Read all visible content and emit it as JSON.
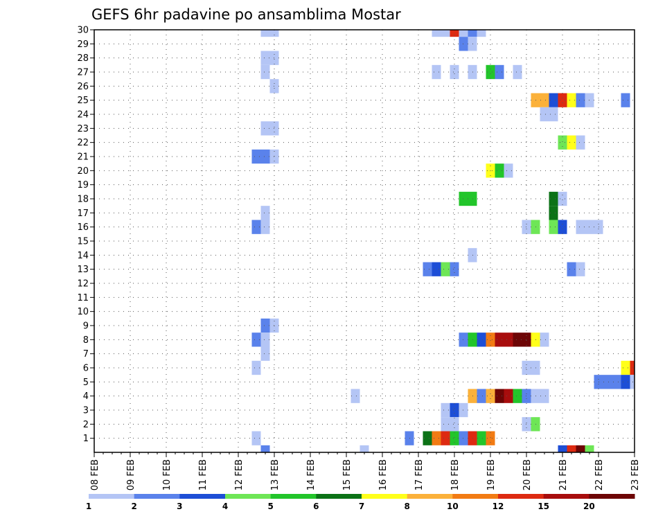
{
  "chart_data": {
    "type": "heatmap",
    "title": "GEFS 6hr padavine po ansamblima Mostar",
    "x_tick_labels": [
      "08 FEB",
      "09 FEB",
      "10 FEB",
      "11 FEB",
      "12 FEB",
      "13 FEB",
      "14 FEB",
      "15 FEB",
      "16 FEB",
      "17 FEB",
      "18 FEB",
      "19 FEB",
      "20 FEB",
      "21 FEB",
      "22 FEB",
      "23 FEB"
    ],
    "y_tick_labels": [
      "1",
      "2",
      "3",
      "4",
      "5",
      "6",
      "7",
      "8",
      "9",
      "10",
      "11",
      "12",
      "13",
      "14",
      "15",
      "16",
      "17",
      "18",
      "19",
      "20",
      "21",
      "22",
      "23",
      "24",
      "25",
      "26",
      "27",
      "28",
      "29",
      "30"
    ],
    "x_range_days": [
      8,
      23
    ],
    "y_range": [
      0,
      30
    ],
    "grid": true,
    "colorbar": {
      "placement": "bottom",
      "labels": [
        "1",
        "2",
        "3",
        "4",
        "5",
        "6",
        "7",
        "8",
        "10",
        "12",
        "15",
        "20"
      ],
      "colors": [
        "#b4c5f5",
        "#5a82eb",
        "#1d4ed6",
        "#6ee656",
        "#22c52a",
        "#0b7216",
        "#ffff1a",
        "#fbb13a",
        "#f27b13",
        "#dd2a11",
        "#a80d0d",
        "#6d0505"
      ]
    },
    "cells": [
      {
        "m": 30,
        "d": 12.75,
        "c": 1
      },
      {
        "m": 30,
        "d": 13.0,
        "c": 1
      },
      {
        "m": 30,
        "d": 17.5,
        "c": 1
      },
      {
        "m": 30,
        "d": 17.75,
        "c": 1
      },
      {
        "m": 30,
        "d": 18.0,
        "c": 10
      },
      {
        "m": 30,
        "d": 18.25,
        "c": 1
      },
      {
        "m": 30,
        "d": 18.5,
        "c": 2
      },
      {
        "m": 30,
        "d": 18.75,
        "c": 1
      },
      {
        "m": 29,
        "d": 18.25,
        "c": 2
      },
      {
        "m": 29,
        "d": 18.5,
        "c": 1
      },
      {
        "m": 28,
        "d": 12.75,
        "c": 1
      },
      {
        "m": 28,
        "d": 13.0,
        "c": 1
      },
      {
        "m": 27,
        "d": 12.75,
        "c": 1
      },
      {
        "m": 27,
        "d": 17.5,
        "c": 1
      },
      {
        "m": 27,
        "d": 18.0,
        "c": 1
      },
      {
        "m": 27,
        "d": 18.5,
        "c": 1
      },
      {
        "m": 27,
        "d": 19.0,
        "c": 5
      },
      {
        "m": 27,
        "d": 19.25,
        "c": 2
      },
      {
        "m": 27,
        "d": 19.75,
        "c": 1
      },
      {
        "m": 26,
        "d": 13.0,
        "c": 1
      },
      {
        "m": 25,
        "d": 20.25,
        "c": 8
      },
      {
        "m": 25,
        "d": 20.5,
        "c": 8
      },
      {
        "m": 25,
        "d": 20.75,
        "c": 3
      },
      {
        "m": 25,
        "d": 21.0,
        "c": 10
      },
      {
        "m": 25,
        "d": 21.25,
        "c": 7
      },
      {
        "m": 25,
        "d": 21.5,
        "c": 2
      },
      {
        "m": 25,
        "d": 21.75,
        "c": 1
      },
      {
        "m": 25,
        "d": 22.75,
        "c": 2
      },
      {
        "m": 24,
        "d": 20.5,
        "c": 1
      },
      {
        "m": 24,
        "d": 20.75,
        "c": 1
      },
      {
        "m": 23,
        "d": 12.75,
        "c": 1
      },
      {
        "m": 23,
        "d": 13.0,
        "c": 1
      },
      {
        "m": 22,
        "d": 21.0,
        "c": 4
      },
      {
        "m": 22,
        "d": 21.25,
        "c": 7
      },
      {
        "m": 22,
        "d": 21.5,
        "c": 1
      },
      {
        "m": 21,
        "d": 12.5,
        "c": 2
      },
      {
        "m": 21,
        "d": 12.75,
        "c": 2
      },
      {
        "m": 21,
        "d": 13.0,
        "c": 1
      },
      {
        "m": 20,
        "d": 19.0,
        "c": 7
      },
      {
        "m": 20,
        "d": 19.25,
        "c": 5
      },
      {
        "m": 20,
        "d": 19.5,
        "c": 1
      },
      {
        "m": 18,
        "d": 18.25,
        "c": 5
      },
      {
        "m": 18,
        "d": 18.5,
        "c": 5
      },
      {
        "m": 18,
        "d": 20.75,
        "c": 6
      },
      {
        "m": 18,
        "d": 21.0,
        "c": 1
      },
      {
        "m": 17,
        "d": 12.75,
        "c": 1
      },
      {
        "m": 17,
        "d": 20.75,
        "c": 6
      },
      {
        "m": 16,
        "d": 12.5,
        "c": 2
      },
      {
        "m": 16,
        "d": 12.75,
        "c": 1
      },
      {
        "m": 16,
        "d": 20.0,
        "c": 1
      },
      {
        "m": 16,
        "d": 20.25,
        "c": 4
      },
      {
        "m": 16,
        "d": 20.75,
        "c": 4
      },
      {
        "m": 16,
        "d": 21.0,
        "c": 3
      },
      {
        "m": 16,
        "d": 21.5,
        "c": 1
      },
      {
        "m": 16,
        "d": 21.75,
        "c": 1
      },
      {
        "m": 16,
        "d": 22.0,
        "c": 1
      },
      {
        "m": 14,
        "d": 18.5,
        "c": 1
      },
      {
        "m": 13,
        "d": 17.25,
        "c": 2
      },
      {
        "m": 13,
        "d": 17.5,
        "c": 3
      },
      {
        "m": 13,
        "d": 17.75,
        "c": 4
      },
      {
        "m": 13,
        "d": 18.0,
        "c": 2
      },
      {
        "m": 13,
        "d": 21.25,
        "c": 2
      },
      {
        "m": 13,
        "d": 21.5,
        "c": 1
      },
      {
        "m": 9,
        "d": 12.75,
        "c": 2
      },
      {
        "m": 9,
        "d": 13.0,
        "c": 1
      },
      {
        "m": 8,
        "d": 12.5,
        "c": 2
      },
      {
        "m": 8,
        "d": 12.75,
        "c": 1
      },
      {
        "m": 8,
        "d": 18.25,
        "c": 2
      },
      {
        "m": 8,
        "d": 18.5,
        "c": 5
      },
      {
        "m": 8,
        "d": 18.75,
        "c": 3
      },
      {
        "m": 8,
        "d": 19.0,
        "c": 9
      },
      {
        "m": 8,
        "d": 19.25,
        "c": 11
      },
      {
        "m": 8,
        "d": 19.5,
        "c": 11
      },
      {
        "m": 8,
        "d": 19.75,
        "c": 12
      },
      {
        "m": 8,
        "d": 20.0,
        "c": 12
      },
      {
        "m": 8,
        "d": 20.25,
        "c": 7
      },
      {
        "m": 8,
        "d": 20.5,
        "c": 1
      },
      {
        "m": 7,
        "d": 12.75,
        "c": 1
      },
      {
        "m": 6,
        "d": 12.5,
        "c": 1
      },
      {
        "m": 6,
        "d": 20.0,
        "c": 1
      },
      {
        "m": 6,
        "d": 20.25,
        "c": 1
      },
      {
        "m": 6,
        "d": 22.75,
        "c": 7
      },
      {
        "m": 6,
        "d": 23.0,
        "c": 10
      },
      {
        "m": 5,
        "d": 22.0,
        "c": 2
      },
      {
        "m": 5,
        "d": 22.25,
        "c": 2
      },
      {
        "m": 5,
        "d": 22.5,
        "c": 2
      },
      {
        "m": 5,
        "d": 22.75,
        "c": 3
      },
      {
        "m": 5,
        "d": 23.0,
        "c": 1
      },
      {
        "m": 4,
        "d": 15.25,
        "c": 1
      },
      {
        "m": 4,
        "d": 18.5,
        "c": 8
      },
      {
        "m": 4,
        "d": 18.75,
        "c": 2
      },
      {
        "m": 4,
        "d": 19.0,
        "c": 8
      },
      {
        "m": 4,
        "d": 19.25,
        "c": 12
      },
      {
        "m": 4,
        "d": 19.5,
        "c": 11
      },
      {
        "m": 4,
        "d": 19.75,
        "c": 5
      },
      {
        "m": 4,
        "d": 20.0,
        "c": 2
      },
      {
        "m": 4,
        "d": 20.25,
        "c": 1
      },
      {
        "m": 4,
        "d": 20.5,
        "c": 1
      },
      {
        "m": 3,
        "d": 17.75,
        "c": 1
      },
      {
        "m": 3,
        "d": 18.0,
        "c": 3
      },
      {
        "m": 3,
        "d": 18.25,
        "c": 1
      },
      {
        "m": 2,
        "d": 17.75,
        "c": 1
      },
      {
        "m": 2,
        "d": 18.0,
        "c": 1
      },
      {
        "m": 2,
        "d": 20.0,
        "c": 1
      },
      {
        "m": 2,
        "d": 20.25,
        "c": 4
      },
      {
        "m": 1,
        "d": 12.5,
        "c": 1
      },
      {
        "m": 1,
        "d": 16.75,
        "c": 2
      },
      {
        "m": 1,
        "d": 17.25,
        "c": 6
      },
      {
        "m": 1,
        "d": 17.5,
        "c": 9
      },
      {
        "m": 1,
        "d": 17.75,
        "c": 10
      },
      {
        "m": 1,
        "d": 18.0,
        "c": 5
      },
      {
        "m": 1,
        "d": 18.25,
        "c": 2
      },
      {
        "m": 1,
        "d": 18.5,
        "c": 10
      },
      {
        "m": 1,
        "d": 18.75,
        "c": 5
      },
      {
        "m": 1,
        "d": 19.0,
        "c": 9
      },
      {
        "m": 0,
        "d": 12.75,
        "c": 2
      },
      {
        "m": 0,
        "d": 15.5,
        "c": 1
      },
      {
        "m": 0,
        "d": 21.0,
        "c": 3
      },
      {
        "m": 0,
        "d": 21.25,
        "c": 10
      },
      {
        "m": 0,
        "d": 21.5,
        "c": 12
      },
      {
        "m": 0,
        "d": 21.75,
        "c": 4
      }
    ]
  }
}
